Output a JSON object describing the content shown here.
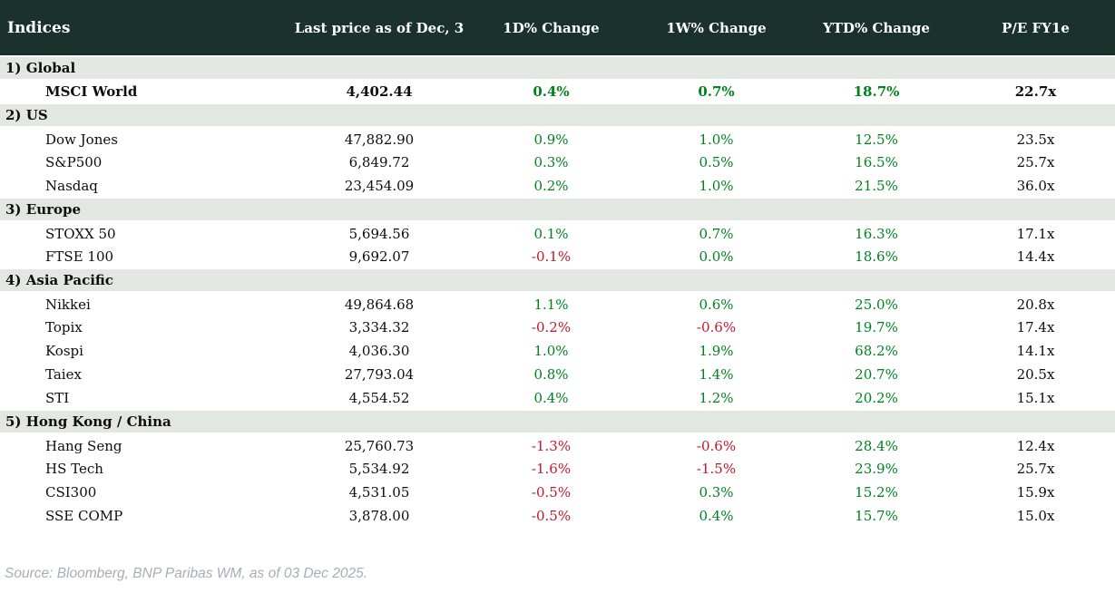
{
  "colors": {
    "header-bg": "#1b312c",
    "band-bg": "#e2e7e2",
    "green": "#00831f",
    "red": "#c2182b",
    "ink": "#0d0d0d",
    "muted": "#a7aeb5"
  },
  "table": {
    "title": "Indices",
    "columns": [
      "Last price as of Dec, 3",
      "1D% Change",
      "1W% Change",
      "YTD% Change",
      "P/E FY1e"
    ],
    "sections": [
      {
        "label": "1) Global",
        "rows": [
          {
            "name": "MSCI World",
            "bold": true,
            "price": "4,402.44",
            "d1": "0.4%",
            "w1": "0.7%",
            "ytd": "18.7%",
            "pe": "22.7x"
          }
        ]
      },
      {
        "label": "2) US",
        "rows": [
          {
            "name": "Dow Jones",
            "bold": false,
            "price": "47,882.90",
            "d1": "0.9%",
            "w1": "1.0%",
            "ytd": "12.5%",
            "pe": "23.5x"
          },
          {
            "name": "S&P500",
            "bold": false,
            "price": "6,849.72",
            "d1": "0.3%",
            "w1": "0.5%",
            "ytd": "16.5%",
            "pe": "25.7x"
          },
          {
            "name": "Nasdaq",
            "bold": false,
            "price": "23,454.09",
            "d1": "0.2%",
            "w1": "1.0%",
            "ytd": "21.5%",
            "pe": "36.0x"
          }
        ]
      },
      {
        "label": "3) Europe",
        "rows": [
          {
            "name": "STOXX 50",
            "bold": false,
            "price": "5,694.56",
            "d1": "0.1%",
            "w1": "0.7%",
            "ytd": "16.3%",
            "pe": "17.1x"
          },
          {
            "name": "FTSE 100",
            "bold": false,
            "price": "9,692.07",
            "d1": "-0.1%",
            "w1": "0.0%",
            "ytd": "18.6%",
            "pe": "14.4x"
          }
        ]
      },
      {
        "label": "4) Asia Pacific",
        "rows": [
          {
            "name": "Nikkei",
            "bold": false,
            "price": "49,864.68",
            "d1": "1.1%",
            "w1": "0.6%",
            "ytd": "25.0%",
            "pe": "20.8x"
          },
          {
            "name": "Topix",
            "bold": false,
            "price": "3,334.32",
            "d1": "-0.2%",
            "w1": "-0.6%",
            "ytd": "19.7%",
            "pe": "17.4x"
          },
          {
            "name": "Kospi",
            "bold": false,
            "price": "4,036.30",
            "d1": "1.0%",
            "w1": "1.9%",
            "ytd": "68.2%",
            "pe": "14.1x"
          },
          {
            "name": "Taiex",
            "bold": false,
            "price": "27,793.04",
            "d1": "0.8%",
            "w1": "1.4%",
            "ytd": "20.7%",
            "pe": "20.5x"
          },
          {
            "name": "STI",
            "bold": false,
            "price": "4,554.52",
            "d1": "0.4%",
            "w1": "1.2%",
            "ytd": "20.2%",
            "pe": "15.1x"
          }
        ]
      },
      {
        "label": "5) Hong Kong / China",
        "rows": [
          {
            "name": "Hang Seng",
            "bold": false,
            "price": "25,760.73",
            "d1": "-1.3%",
            "w1": "-0.6%",
            "ytd": "28.4%",
            "pe": "12.4x"
          },
          {
            "name": "HS Tech",
            "bold": false,
            "price": "5,534.92",
            "d1": "-1.6%",
            "w1": "-1.5%",
            "ytd": "23.9%",
            "pe": "25.7x"
          },
          {
            "name": "CSI300",
            "bold": false,
            "price": "4,531.05",
            "d1": "-0.5%",
            "w1": "0.3%",
            "ytd": "15.2%",
            "pe": "15.9x"
          },
          {
            "name": "SSE COMP",
            "bold": false,
            "price": "3,878.00",
            "d1": "-0.5%",
            "w1": "0.4%",
            "ytd": "15.7%",
            "pe": "15.0x"
          }
        ]
      }
    ]
  },
  "footer": {
    "source": "Source: Bloomberg, BNP Paribas WM, as of 03 Dec 2025."
  }
}
